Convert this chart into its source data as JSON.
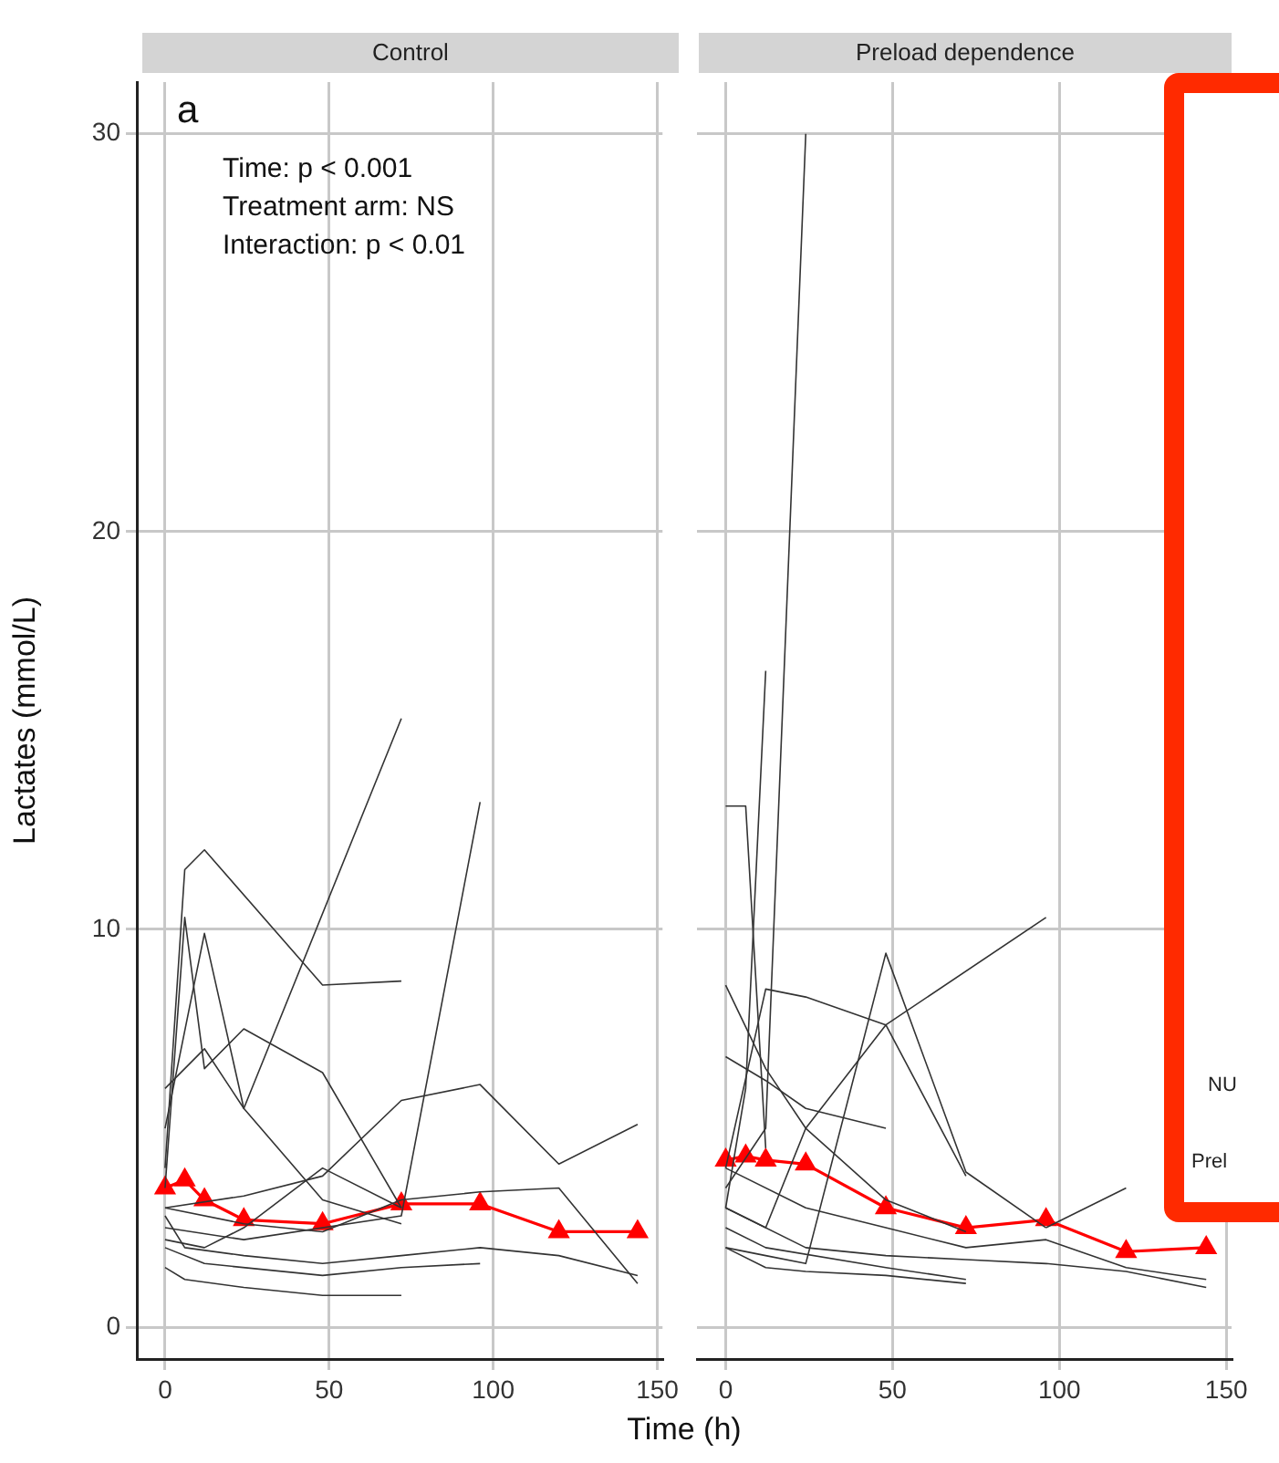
{
  "chart_data": [
    {
      "type": "line",
      "title": "Control",
      "xlabel": "Time (h)",
      "ylabel": "Lactates (mmol/L)",
      "xlim": [
        -8.6,
        151.6
      ],
      "ylim": [
        -0.8,
        31.3
      ],
      "xticks": [
        0,
        50,
        100,
        150
      ],
      "yticks": [
        0,
        10,
        20,
        30
      ],
      "grid": true,
      "legend": false,
      "annotations": [
        "a",
        "Time: p < 0.001",
        "Treatment arm: NS",
        "Interaction: p < 0.01"
      ],
      "series": [
        {
          "color": "#333333",
          "marker": "none",
          "x": [
            0,
            6,
            12,
            48,
            72
          ],
          "values": [
            4,
            11.5,
            12,
            8.6,
            8.7
          ]
        },
        {
          "color": "#333333",
          "marker": "none",
          "x": [
            0,
            12,
            24,
            72
          ],
          "values": [
            6,
            7,
            5.5,
            15.3
          ]
        },
        {
          "color": "#333333",
          "marker": "none",
          "x": [
            0,
            24,
            72,
            96
          ],
          "values": [
            2.5,
            2.2,
            2.8,
            13.2
          ]
        },
        {
          "color": "#333333",
          "marker": "none",
          "x": [
            0,
            24,
            48,
            72,
            96,
            120,
            144
          ],
          "values": [
            3,
            3.3,
            3.8,
            5.7,
            6.1,
            4.1,
            5.1
          ]
        },
        {
          "color": "#333333",
          "marker": "none",
          "x": [
            0,
            6,
            12,
            24,
            48,
            72
          ],
          "values": [
            3.5,
            10.3,
            6.5,
            7.5,
            6.4,
            3
          ]
        },
        {
          "color": "#333333",
          "marker": "none",
          "x": [
            0,
            12,
            24,
            48,
            72
          ],
          "values": [
            5,
            9.9,
            5.5,
            3.2,
            2.6
          ]
        },
        {
          "color": "#333333",
          "marker": "none",
          "x": [
            0,
            6,
            24,
            48,
            72
          ],
          "values": [
            1.5,
            1.2,
            1,
            0.8,
            0.8
          ]
        },
        {
          "color": "#333333",
          "marker": "none",
          "x": [
            0,
            12,
            48,
            72,
            96
          ],
          "values": [
            2,
            1.6,
            1.3,
            1.5,
            1.6
          ]
        },
        {
          "color": "#333333",
          "marker": "none",
          "x": [
            0,
            6,
            24,
            48,
            72,
            96,
            120,
            144
          ],
          "values": [
            2.8,
            2,
            1.8,
            1.6,
            1.8,
            2,
            1.8,
            1.3
          ]
        },
        {
          "color": "#333333",
          "marker": "none",
          "x": [
            0,
            24,
            48,
            72,
            96,
            120,
            144
          ],
          "values": [
            3,
            2.6,
            2.4,
            3.2,
            3.4,
            3.5,
            1.1
          ]
        },
        {
          "color": "#333333",
          "marker": "none",
          "x": [
            0,
            12,
            24,
            48,
            72
          ],
          "values": [
            2.2,
            2,
            2.5,
            4,
            3
          ]
        },
        {
          "color": "#ff0000",
          "marker": "triangle",
          "x": [
            0,
            6,
            12,
            24,
            48,
            72,
            96,
            120,
            144
          ],
          "values": [
            3.5,
            3.7,
            3.2,
            2.7,
            2.6,
            3.1,
            3.1,
            2.4,
            2.4
          ]
        }
      ]
    },
    {
      "type": "line",
      "title": "Preload dependence",
      "xlim": [
        -8.6,
        151.6
      ],
      "ylim": [
        -0.8,
        31.3
      ],
      "xticks": [
        0,
        50,
        100,
        150
      ],
      "yticks": [
        0,
        10,
        20,
        30
      ],
      "grid": true,
      "legend": false,
      "tick_labels": "x",
      "annotations": [
        "NU",
        "Prel"
      ],
      "series": [
        {
          "color": "#333333",
          "marker": "none",
          "x": [
            0,
            12,
            24
          ],
          "values": [
            3.5,
            5,
            30
          ]
        },
        {
          "color": "#333333",
          "marker": "none",
          "x": [
            0,
            6,
            12
          ],
          "values": [
            3,
            6,
            16.5
          ]
        },
        {
          "color": "#333333",
          "marker": "none",
          "x": [
            0,
            6,
            12
          ],
          "values": [
            13.1,
            13.1,
            4.5
          ]
        },
        {
          "color": "#333333",
          "marker": "none",
          "x": [
            0,
            12,
            24,
            48,
            96
          ],
          "values": [
            3,
            2.5,
            5,
            7.6,
            10.3
          ]
        },
        {
          "color": "#333333",
          "marker": "none",
          "x": [
            0,
            12,
            24,
            48,
            72,
            96
          ],
          "values": [
            2,
            1.8,
            1.6,
            9.4,
            3.9,
            2.5
          ]
        },
        {
          "color": "#333333",
          "marker": "none",
          "x": [
            0,
            12,
            24,
            48,
            72
          ],
          "values": [
            8.6,
            6.5,
            5,
            3.2,
            2.4
          ]
        },
        {
          "color": "#333333",
          "marker": "none",
          "x": [
            0,
            12,
            24,
            48,
            72
          ],
          "values": [
            4,
            8.5,
            8.3,
            7.6,
            3.8
          ]
        },
        {
          "color": "#333333",
          "marker": "none",
          "x": [
            0,
            12,
            24,
            48
          ],
          "values": [
            6.8,
            6.2,
            5.5,
            5
          ]
        },
        {
          "color": "#333333",
          "marker": "none",
          "x": [
            96,
            120
          ],
          "values": [
            2.5,
            3.5
          ]
        },
        {
          "color": "#333333",
          "marker": "none",
          "x": [
            0,
            12,
            24,
            48,
            72
          ],
          "values": [
            2,
            1.5,
            1.4,
            1.3,
            1.1
          ]
        },
        {
          "color": "#333333",
          "marker": "none",
          "x": [
            0,
            24,
            48,
            72,
            96,
            120,
            144
          ],
          "values": [
            3,
            2,
            1.8,
            1.7,
            1.6,
            1.4,
            1
          ]
        },
        {
          "color": "#333333",
          "marker": "none",
          "x": [
            0,
            12,
            48,
            72
          ],
          "values": [
            2.5,
            2,
            1.5,
            1.2
          ]
        },
        {
          "color": "#333333",
          "marker": "none",
          "x": [
            0,
            24,
            48,
            72,
            96,
            120,
            144
          ],
          "values": [
            4,
            3,
            2.5,
            2,
            2.2,
            1.5,
            1.2
          ]
        },
        {
          "color": "#ff0000",
          "marker": "triangle",
          "x": [
            0,
            6,
            12,
            24,
            48,
            72,
            96,
            120,
            144
          ],
          "values": [
            4.2,
            4.3,
            4.2,
            4.1,
            3,
            2.5,
            2.7,
            1.9,
            2
          ]
        }
      ]
    }
  ]
}
